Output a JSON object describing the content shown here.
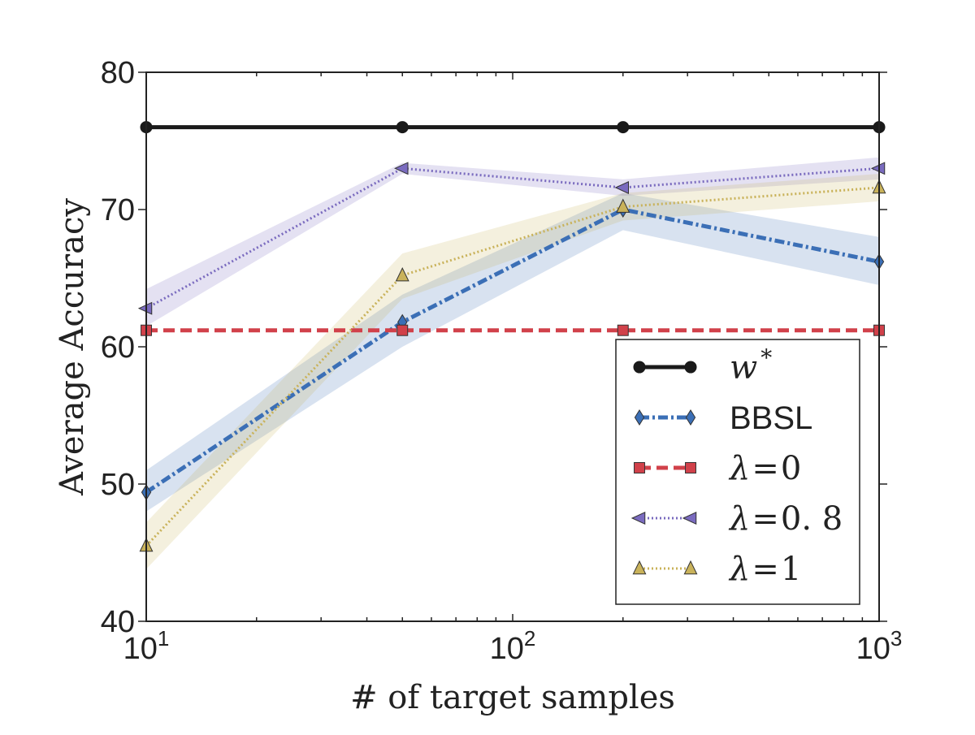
{
  "chart_data": {
    "type": "line",
    "title": "",
    "xlabel": "# of target samples",
    "ylabel": "Average Accuracy",
    "x_scale": "log",
    "xlim": [
      10,
      1000
    ],
    "ylim": [
      40,
      80
    ],
    "x_ticks": [
      {
        "value": 10,
        "base": "10",
        "exp": "1"
      },
      {
        "value": 100,
        "base": "10",
        "exp": "2"
      },
      {
        "value": 1000,
        "base": "10",
        "exp": "3"
      }
    ],
    "y_ticks": [
      "40",
      "50",
      "60",
      "70",
      "80"
    ],
    "grid": false,
    "legend_position": "lower-right",
    "x": [
      10,
      50,
      200,
      1000
    ],
    "series": [
      {
        "name": "w*",
        "legend_var": "w",
        "legend_sup": "*",
        "legend_style": "math",
        "color": "#1a1a1a",
        "marker": "circle",
        "dash": "solid",
        "values": [
          76,
          76,
          76,
          76
        ],
        "band": null
      },
      {
        "name": "BBSL",
        "legend_style": "sans",
        "color": "#3b6fb6",
        "marker": "diamond",
        "dash": "dashdot",
        "values": [
          49.4,
          61.8,
          70.0,
          66.2
        ],
        "band": {
          "lower": [
            48.0,
            60.0,
            68.5,
            64.5
          ],
          "upper": [
            51.0,
            63.8,
            71.2,
            68.0
          ]
        }
      },
      {
        "name": "λ=0",
        "legend_var": "λ",
        "legend_eq": "=",
        "legend_num": "0",
        "legend_style": "math",
        "color": "#d1414a",
        "marker": "square",
        "dash": "dashed",
        "values": [
          61.2,
          61.2,
          61.2,
          61.2
        ],
        "band": null
      },
      {
        "name": "λ=0.8",
        "legend_var": "λ",
        "legend_eq": "=",
        "legend_num": "0. 8",
        "legend_style": "math",
        "color": "#7a6bbf",
        "marker": "triangle-left",
        "dash": "dotted",
        "values": [
          62.8,
          73.0,
          71.6,
          73.0
        ],
        "band": {
          "lower": [
            61.5,
            72.6,
            71.0,
            72.2
          ],
          "upper": [
            64.2,
            73.4,
            72.2,
            73.8
          ]
        }
      },
      {
        "name": "λ=1",
        "legend_var": "λ",
        "legend_eq": "=",
        "legend_num": "1",
        "legend_style": "math",
        "color": "#c9b25a",
        "marker": "triangle-up",
        "dash": "dotted",
        "values": [
          45.5,
          65.2,
          70.2,
          71.6
        ],
        "band": {
          "lower": [
            43.8,
            63.5,
            69.2,
            70.6
          ],
          "upper": [
            47.2,
            66.8,
            71.2,
            72.6
          ]
        }
      }
    ]
  }
}
